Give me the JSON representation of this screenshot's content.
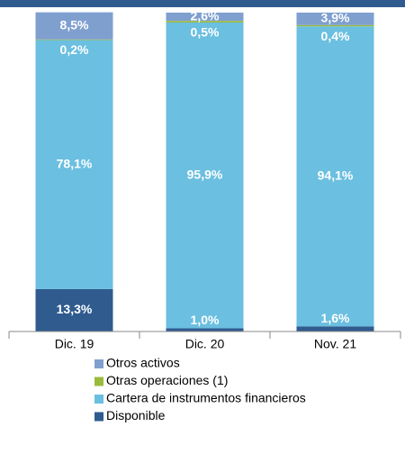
{
  "chart_data": {
    "type": "stacked_bar",
    "categories": [
      "Dic. 19",
      "Dic. 20",
      "Nov. 21"
    ],
    "ylim": [
      0,
      100
    ],
    "series": [
      {
        "name": "Disponible",
        "color": "#2f5b8f",
        "values": [
          13.3,
          1.0,
          1.6
        ],
        "value_labels": [
          "13,3%",
          "1,0%",
          "1,6%"
        ]
      },
      {
        "name": "Cartera de instrumentos financieros",
        "color": "#6bbfe0",
        "values": [
          78.1,
          95.9,
          94.1
        ],
        "value_labels": [
          "78,1%",
          "95,9%",
          "94,1%"
        ]
      },
      {
        "name": "Otras operaciones (1)",
        "color": "#9bbb3b",
        "values": [
          0.2,
          0.5,
          0.4
        ],
        "value_labels": [
          "0,2%",
          "0,5%",
          "0,4%"
        ]
      },
      {
        "name": "Otros activos",
        "color": "#7f9fcf",
        "values": [
          8.5,
          2.6,
          3.9
        ],
        "value_labels": [
          "8,5%",
          "2,6%",
          "3,9%"
        ]
      }
    ],
    "legend": "bottom"
  }
}
